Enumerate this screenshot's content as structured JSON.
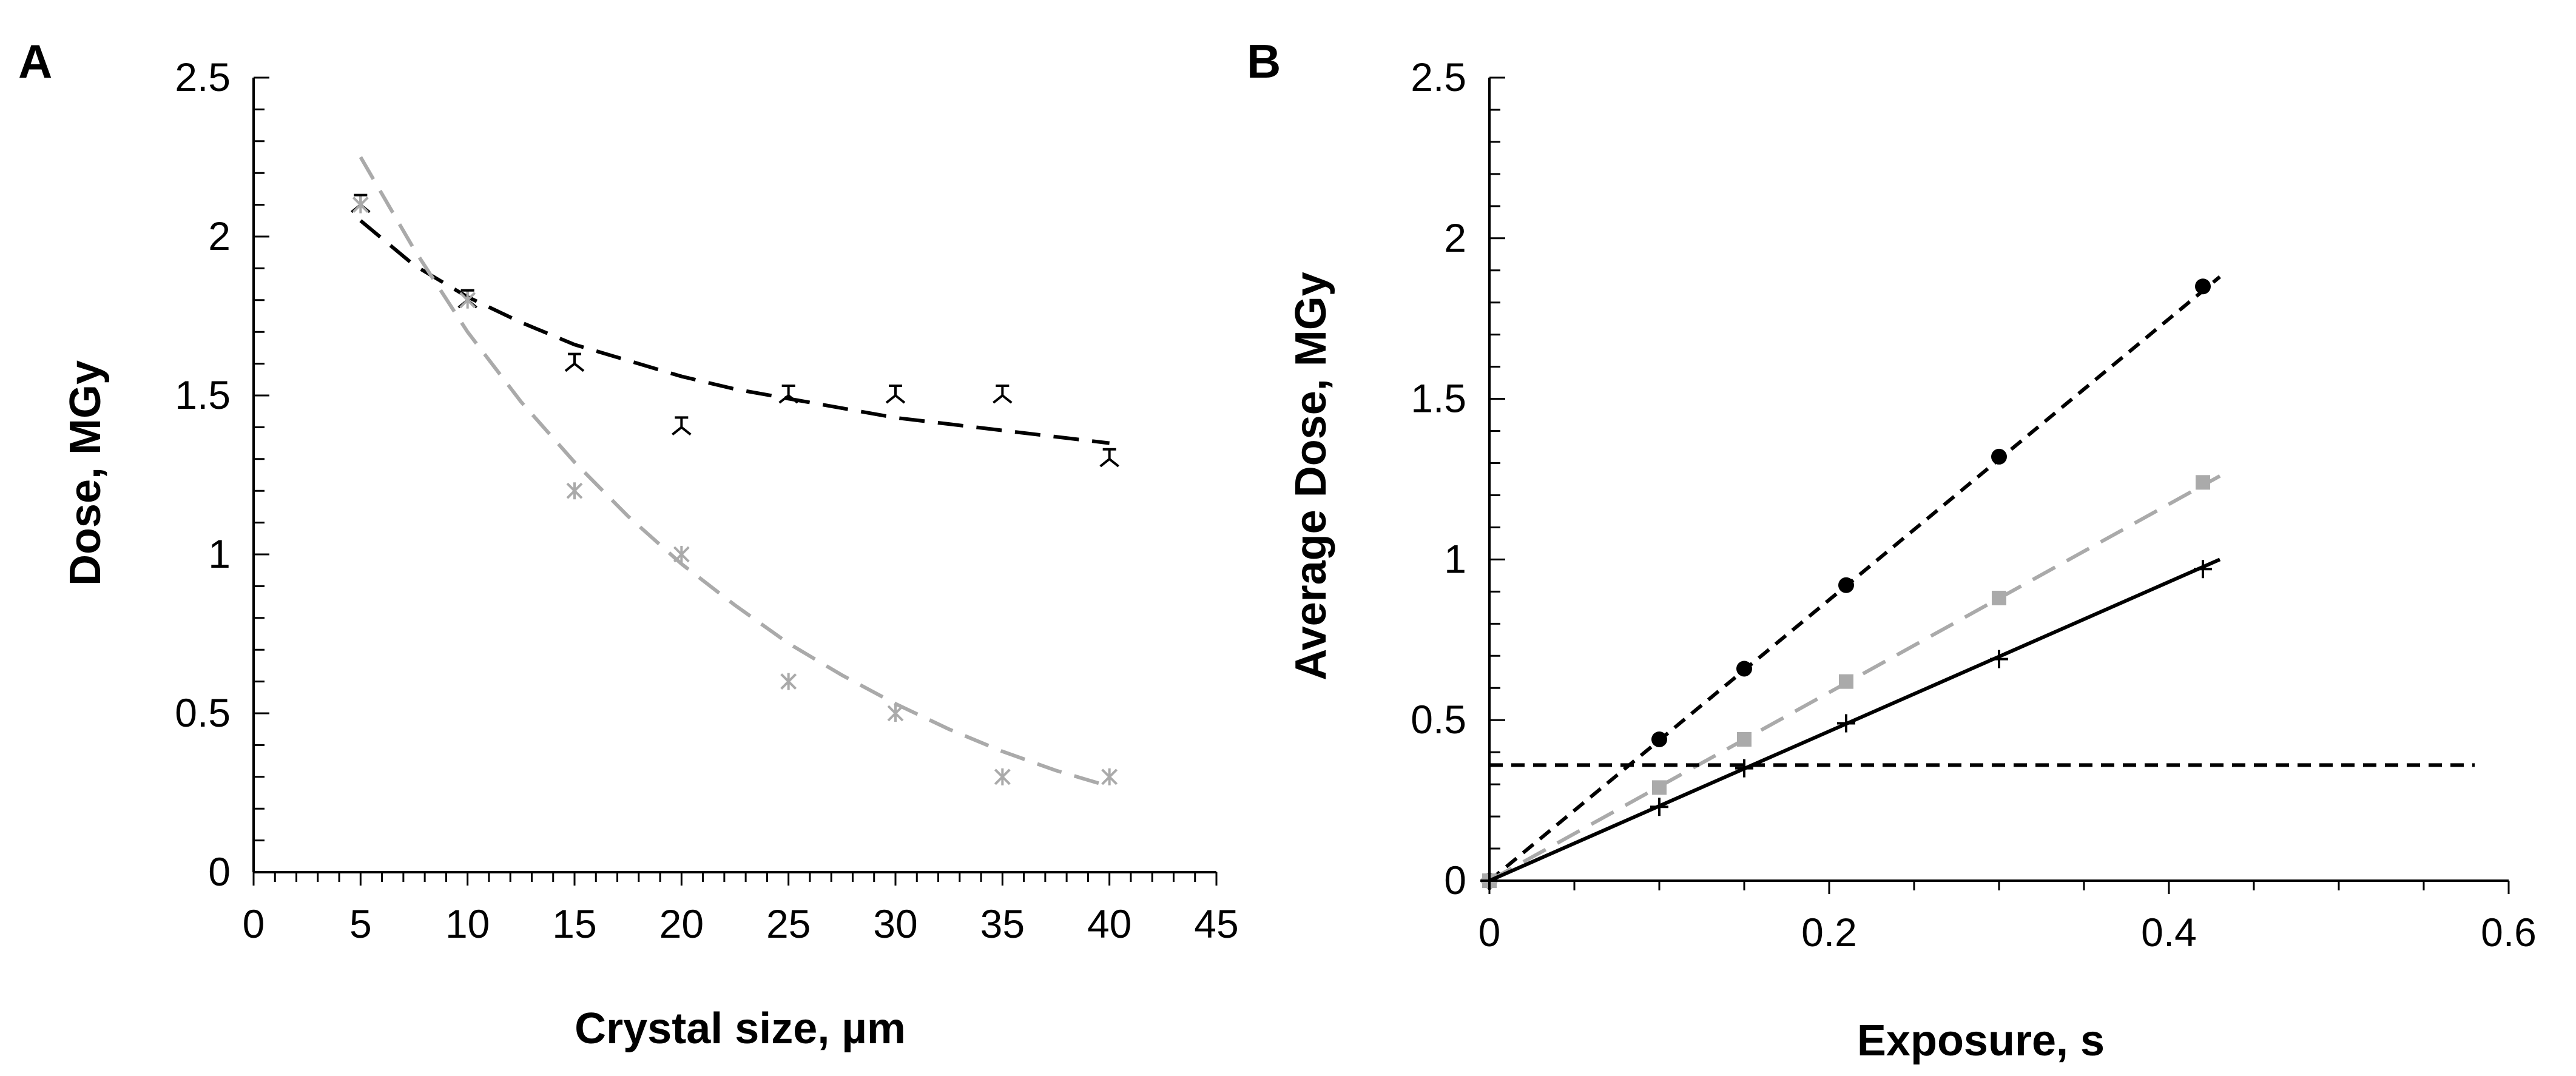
{
  "chart_data": [
    {
      "type": "scatter",
      "panel_label": "A",
      "xlabel": "Crystal size, µm",
      "ylabel": "Dose, MGy",
      "xlim": [
        0,
        45
      ],
      "ylim": [
        0,
        2.5
      ],
      "xticks": [
        "0",
        "5",
        "10",
        "15",
        "20",
        "25",
        "30",
        "35",
        "40",
        "45"
      ],
      "yticks": [
        "0",
        "0.5",
        "1",
        "1.5",
        "2",
        "2.5"
      ],
      "series": [
        {
          "name": "series-black",
          "color": "#000000",
          "marker": "tri-down",
          "x": [
            5,
            10,
            15,
            20,
            25,
            30,
            35,
            40
          ],
          "values": [
            2.1,
            1.8,
            1.6,
            1.4,
            1.5,
            1.5,
            1.5,
            1.3
          ],
          "trend": {
            "style": "long-dash",
            "x": [
              5,
              7.5,
              10,
              12.5,
              15,
              17.5,
              20,
              22.5,
              25,
              27.5,
              30,
              32.5,
              35,
              37.5,
              40
            ],
            "y": [
              2.05,
              1.91,
              1.81,
              1.73,
              1.66,
              1.61,
              1.56,
              1.52,
              1.49,
              1.46,
              1.43,
              1.41,
              1.39,
              1.37,
              1.35
            ]
          }
        },
        {
          "name": "series-gray",
          "color": "#aaaaaa",
          "marker": "asterisk",
          "x": [
            5,
            10,
            15,
            20,
            25,
            30,
            35,
            40
          ],
          "values": [
            2.1,
            1.8,
            1.2,
            1.0,
            0.6,
            0.5,
            0.3,
            0.3
          ],
          "trend": {
            "style": "long-dash",
            "x": [
              5,
              7.5,
              10,
              12.5,
              15,
              17.5,
              20,
              22.5,
              25,
              27.5,
              30,
              32.5,
              35,
              37.5,
              40
            ],
            "y": [
              2.25,
              1.96,
              1.7,
              1.48,
              1.29,
              1.12,
              0.97,
              0.84,
              0.72,
              0.62,
              0.53,
              0.45,
              0.38,
              0.32,
              0.27
            ]
          }
        }
      ]
    },
    {
      "type": "line",
      "panel_label": "B",
      "xlabel": "Exposure, s",
      "ylabel": "Average Dose, MGy",
      "xlim": [
        0,
        0.6
      ],
      "ylim": [
        0,
        2.5
      ],
      "xticks": [
        "0",
        "0.2",
        "0.4",
        "0.6"
      ],
      "yticks": [
        "0",
        "0.5",
        "1",
        "1.5",
        "2",
        "2.5"
      ],
      "series": [
        {
          "name": "series-black-circle",
          "color": "#000000",
          "marker": "circle",
          "line": "short-dash",
          "x": [
            0,
            0.1,
            0.15,
            0.21,
            0.3,
            0.42
          ],
          "values": [
            0,
            0.44,
            0.66,
            0.92,
            1.32,
            1.85
          ],
          "fit": {
            "x": [
              0,
              0.43
            ],
            "y": [
              0,
              1.88
            ]
          }
        },
        {
          "name": "series-gray-square",
          "color": "#aaaaaa",
          "marker": "square",
          "line": "long-dash",
          "x": [
            0,
            0.1,
            0.15,
            0.21,
            0.3,
            0.42
          ],
          "values": [
            0,
            0.29,
            0.44,
            0.62,
            0.88,
            1.24
          ],
          "fit": {
            "x": [
              0,
              0.43
            ],
            "y": [
              0,
              1.26
            ]
          }
        },
        {
          "name": "series-black-plus",
          "color": "#000000",
          "marker": "plus",
          "line": "solid",
          "x": [
            0,
            0.1,
            0.15,
            0.21,
            0.3,
            0.42
          ],
          "values": [
            0,
            0.23,
            0.35,
            0.49,
            0.69,
            0.97
          ],
          "fit": {
            "x": [
              0,
              0.43
            ],
            "y": [
              0,
              1.0
            ]
          }
        },
        {
          "name": "threshold-line",
          "color": "#000000",
          "line": "short-dash",
          "x": [
            0,
            0.58
          ],
          "values": [
            0.36,
            0.36
          ]
        }
      ]
    }
  ]
}
